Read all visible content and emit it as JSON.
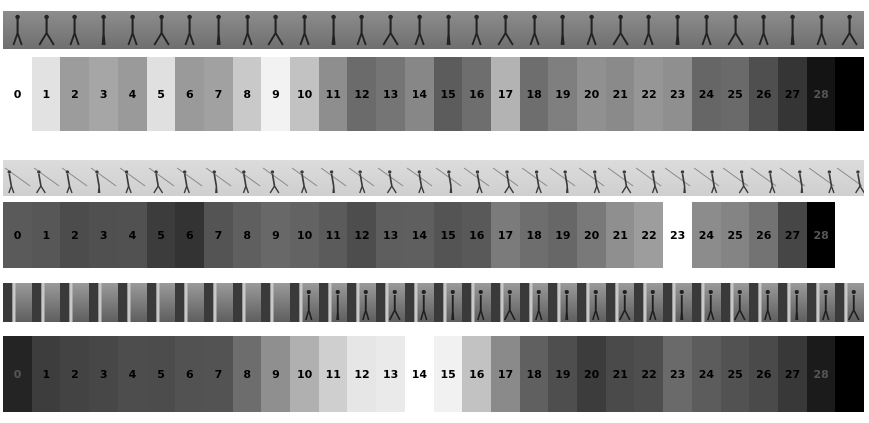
{
  "sequences": [
    {
      "id": "seq-1",
      "frame_count": 30,
      "scene": "side-view walking on grey ground",
      "colors": {
        "bg_top": "#8d8d8d",
        "bg_bottom": "#6f6f6f",
        "figure": "#222222"
      },
      "frame_labels": [
        "0",
        "1",
        "2",
        "3",
        "4",
        "5",
        "6",
        "7",
        "8",
        "9",
        "10",
        "11",
        "12",
        "13",
        "14",
        "15",
        "16",
        "17",
        "18",
        "19",
        "20",
        "21",
        "22",
        "23",
        "24",
        "25",
        "26",
        "27",
        "28",
        ""
      ],
      "cell_shades": [
        "#ffffff",
        "#e2e2e2",
        "#9c9c9c",
        "#a6a6a6",
        "#9a9a9a",
        "#e0e0e0",
        "#9a9a9a",
        "#a1a1a1",
        "#c9c9c9",
        "#f2f2f2",
        "#c2c2c2",
        "#8e8e8e",
        "#6b6b6b",
        "#757575",
        "#878787",
        "#5c5c5c",
        "#6e6e6e",
        "#b3b3b3",
        "#6e6e6e",
        "#7f7f7f",
        "#909090",
        "#8a8a8a",
        "#969696",
        "#8f8f8f",
        "#666666",
        "#6a6a6a",
        "#4f4f4f",
        "#353535",
        "#141414",
        "#000000"
      ]
    },
    {
      "id": "seq-2",
      "frame_count": 30,
      "scene": "oblique view walking, light background",
      "colors": {
        "bg_top": "#dcdcdc",
        "bg_bottom": "#cfcfcf",
        "figure": "#3a3a3a"
      },
      "frame_labels": [
        "0",
        "1",
        "2",
        "3",
        "4",
        "5",
        "6",
        "7",
        "8",
        "9",
        "10",
        "11",
        "12",
        "13",
        "14",
        "15",
        "16",
        "17",
        "18",
        "19",
        "20",
        "21",
        "22",
        "23",
        "24",
        "25",
        "26",
        "27",
        "28",
        ""
      ],
      "cell_shades": [
        "#5a5a5a",
        "#575757",
        "#4c4c4c",
        "#505050",
        "#515151",
        "#3c3c3c",
        "#333333",
        "#545454",
        "#5f5f5f",
        "#686868",
        "#636363",
        "#5b5b5b",
        "#4d4d4d",
        "#5e5e5e",
        "#5f5f5f",
        "#545454",
        "#595959",
        "#7b7b7b",
        "#6e6e6e",
        "#676767",
        "#797979",
        "#8f8f8f",
        "#9d9d9d",
        "#ffffff",
        "#8c8c8c",
        "#848484",
        "#737373",
        "#464646",
        "#000000",
        "#ffffff"
      ]
    },
    {
      "id": "seq-3",
      "frame_count": 30,
      "scene": "indoor corridor walking, wall at left",
      "colors": {
        "bg_top": "#9a9a9a",
        "bg_bottom": "#5e5e5e",
        "figure": "#1f1f1f"
      },
      "frame_labels": [
        "0",
        "1",
        "2",
        "3",
        "4",
        "5",
        "6",
        "7",
        "8",
        "9",
        "10",
        "11",
        "12",
        "13",
        "14",
        "15",
        "16",
        "17",
        "18",
        "19",
        "20",
        "21",
        "22",
        "23",
        "24",
        "25",
        "26",
        "27",
        "28",
        ""
      ],
      "cell_shades": [
        "#242424",
        "#3d3d3d",
        "#434343",
        "#474747",
        "#4d4d4d",
        "#4c4c4c",
        "#525252",
        "#535353",
        "#6d6d6d",
        "#8f8f8f",
        "#b0b0b0",
        "#cfcfcf",
        "#e6e6e6",
        "#eaeaea",
        "#ffffff",
        "#f1f1f1",
        "#c2c2c2",
        "#8a8a8a",
        "#606060",
        "#4e4e4e",
        "#3c3c3c",
        "#4a4a4a",
        "#4e4e4e",
        "#6a6a6a",
        "#5c5c5c",
        "#525252",
        "#4a4a4a",
        "#383838",
        "#1b1b1b",
        "#000000"
      ]
    }
  ]
}
